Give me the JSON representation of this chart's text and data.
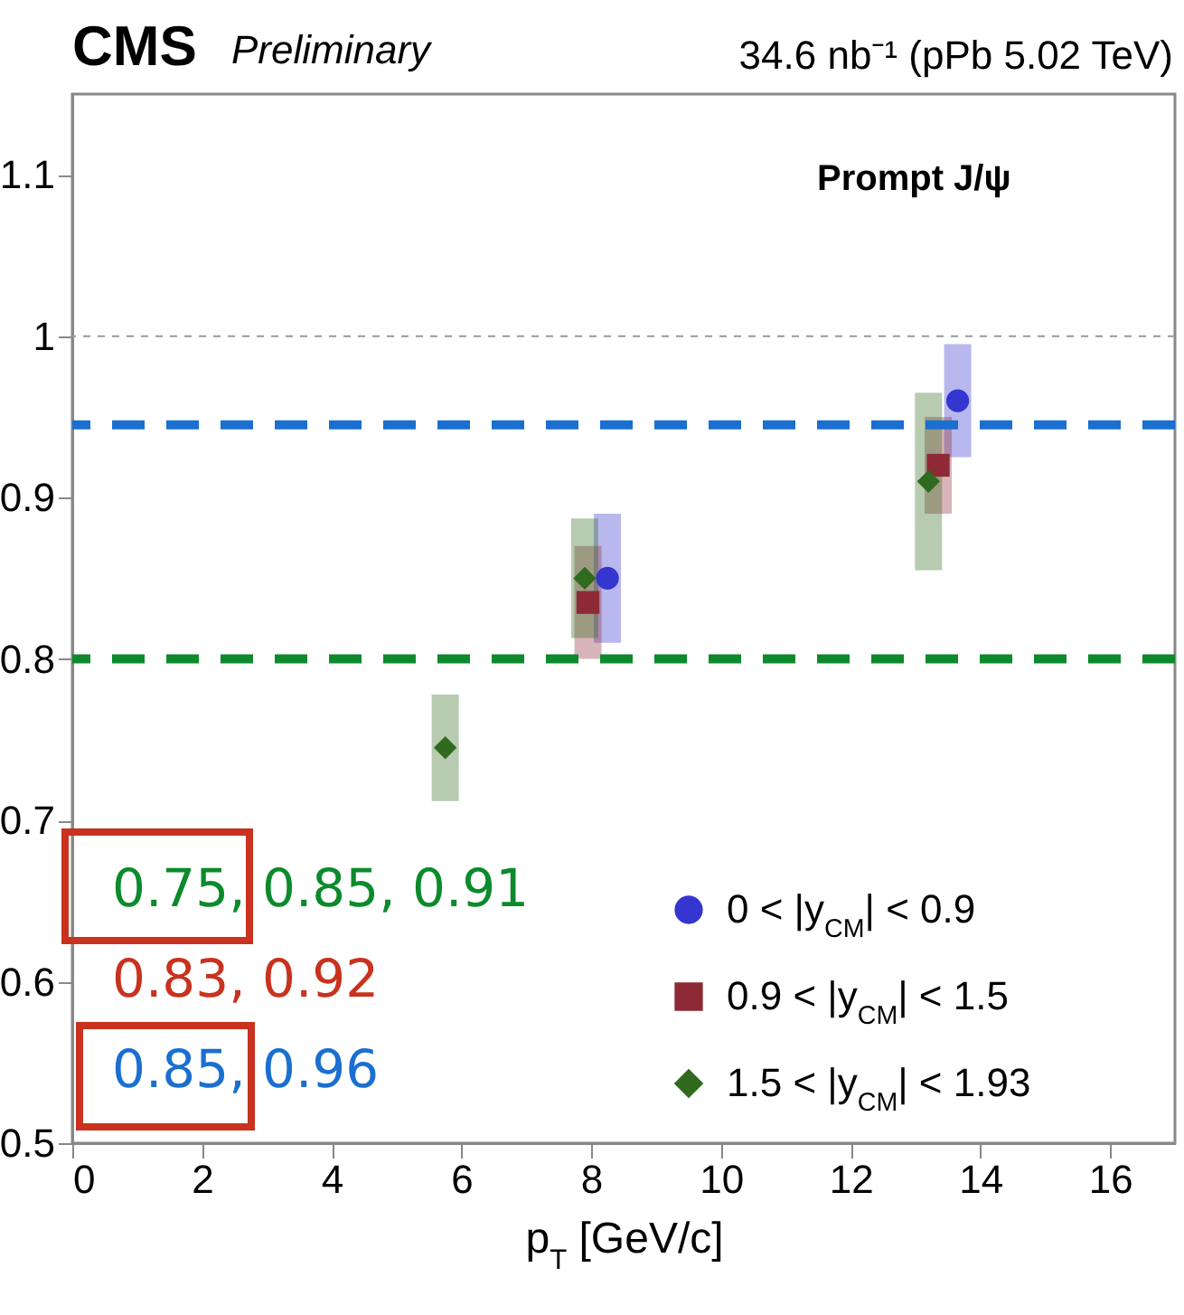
{
  "chart_data": {
    "type": "scatter",
    "title": "CMS",
    "subtitle": "Preliminary",
    "xlabel": "p$_{T}$ [GeV/c]",
    "annotations": [
      "34.6 nb⁻¹ (pPb 5.02 TeV)",
      "Prompt J/ψ",
      "0.75, 0.85, 0.91",
      "0.83, 0.92",
      "0.85, 0.96"
    ],
    "series": [
      {
        "name": "0 < |y$_{CM}$| < 0.9",
        "color": "#3535d0",
        "marker": "circle",
        "x": [
          8.25,
          13.65
        ],
        "values": [
          0.85,
          0.96
        ],
        "errors": [
          0.04,
          0.035
        ]
      },
      {
        "name": "0.9 < |y$_{CM}$| < 1.5",
        "color": "#8e2a35",
        "marker": "square",
        "x": [
          7.95,
          13.35
        ],
        "values": [
          0.835,
          0.92
        ],
        "errors": [
          0.035,
          0.03
        ]
      },
      {
        "name": "1.5 < |y$_{CM}$| < 1.93",
        "color": "#2f6a1e",
        "marker": "diamond",
        "x": [
          5.75,
          7.9,
          13.2
        ],
        "values": [
          0.745,
          0.85,
          0.91
        ],
        "errors": [
          0.033,
          0.037,
          0.055
        ]
      }
    ],
    "ref_lines": [
      {
        "axis": "y",
        "value": 1,
        "color": "#999999",
        "line_style": "dotted"
      },
      {
        "axis": "y",
        "value": 0.945,
        "color": "#1a6fd0",
        "line_style": "dashed"
      },
      {
        "axis": "y",
        "value": 0.8,
        "color": "#0c8a2c",
        "line_style": "dashed"
      }
    ],
    "xlim": [
      0,
      17
    ],
    "xticks": [
      0,
      2,
      4,
      6,
      8,
      10,
      12,
      14,
      16
    ],
    "ylim": [
      0.5,
      1.15
    ],
    "yticks": [
      0.5,
      0.6,
      0.7,
      0.8,
      0.9,
      1,
      1.1
    ],
    "grid": false,
    "legend": "bottom right"
  }
}
